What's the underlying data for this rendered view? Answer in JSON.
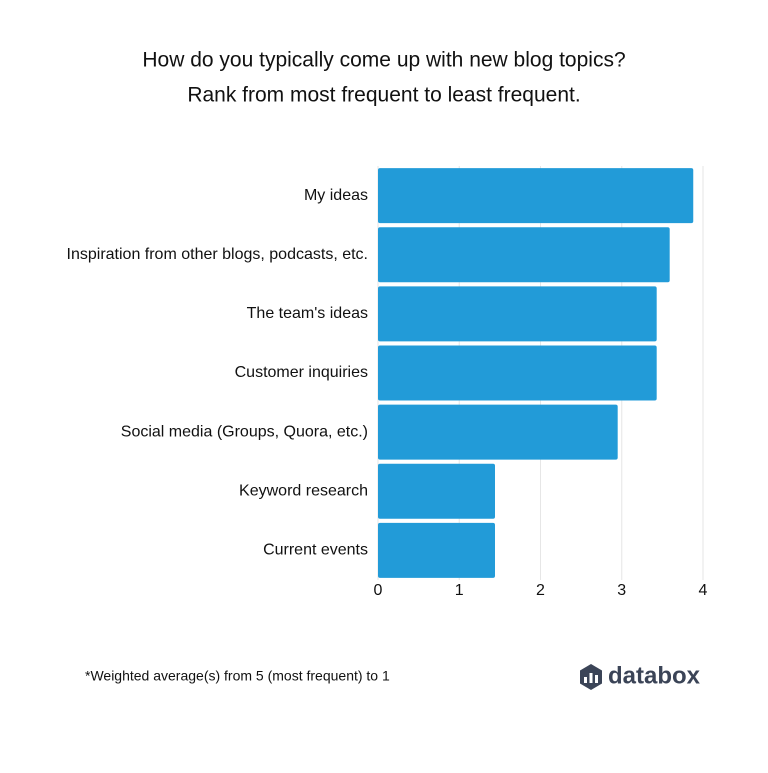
{
  "chart_data": {
    "type": "bar",
    "orientation": "horizontal",
    "title": "How do you typically come up with new blog topics?",
    "subtitle": "Rank from most frequent to least frequent.",
    "categories": [
      "My ideas",
      "Inspiration from other blogs, podcasts, etc.",
      "The team's ideas",
      "Customer inquiries",
      "Social media (Groups, Quora, etc.)",
      "Keyword research",
      "Current events"
    ],
    "values": [
      3.88,
      3.59,
      3.43,
      3.43,
      2.95,
      1.44,
      1.44
    ],
    "color": "#229bd8",
    "xlim": [
      0,
      4
    ],
    "xticks": [
      0,
      1,
      2,
      3,
      4
    ],
    "grid": true,
    "footnote": "*Weighted average(s) from 5 (most frequent) to 1",
    "brand": "databox"
  }
}
